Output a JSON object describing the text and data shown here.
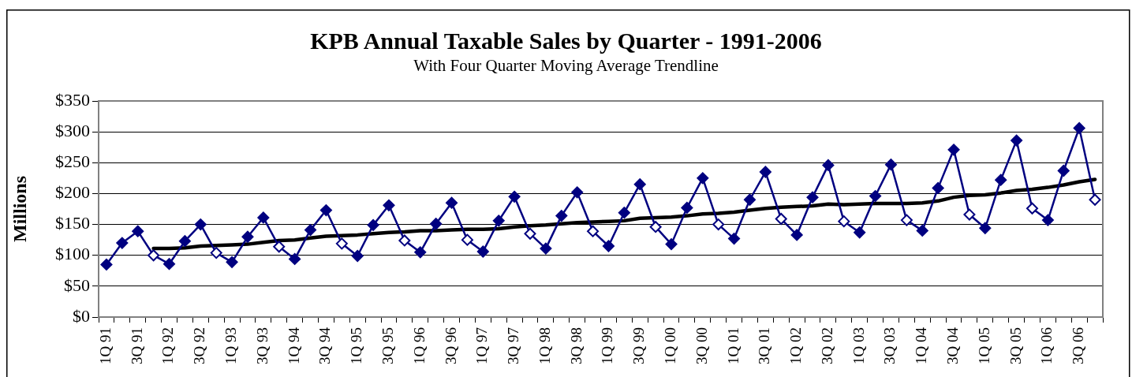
{
  "chart_data": {
    "type": "line",
    "title": "KPB Annual Taxable Sales by Quarter - 1991-2006",
    "subtitle": "With Four Quarter Moving Average Trendline",
    "ylabel": "Millions",
    "categories": [
      "1Q 91",
      null,
      "3Q 91",
      null,
      "1Q 92",
      null,
      "3Q 92",
      null,
      "1Q 93",
      null,
      "3Q 93",
      null,
      "1Q 94",
      null,
      "3Q 94",
      null,
      "1Q 95",
      null,
      "3Q 95",
      null,
      "1Q 96",
      null,
      "3Q 96",
      null,
      "1Q 97",
      null,
      "3Q 97",
      null,
      "1Q 98",
      null,
      "3Q 98",
      null,
      "1Q 99",
      null,
      "3Q 99",
      null,
      "1Q 00",
      null,
      "3Q 00",
      null,
      "1Q 01",
      null,
      "3Q 01",
      null,
      "1Q 02",
      null,
      "3Q 02",
      null,
      "1Q 03",
      null,
      "3Q 03",
      null,
      "1Q 04",
      null,
      "3Q 04",
      null,
      "1Q 05",
      null,
      "3Q 05",
      null,
      "1Q 06",
      null,
      "3Q 06",
      null
    ],
    "series": [
      {
        "color": "#000080",
        "marker": "diamond",
        "colors": [
          "#000080",
          "#000080",
          "#000080",
          "#ffffff",
          "#000080",
          "#000080",
          "#000080",
          "#ffffff",
          "#000080",
          "#000080",
          "#000080",
          "#ffffff",
          "#000080",
          "#000080",
          "#000080",
          "#ffffff",
          "#000080",
          "#000080",
          "#000080",
          "#ffffff",
          "#000080",
          "#000080",
          "#000080",
          "#ffffff",
          "#000080",
          "#000080",
          "#000080",
          "#ffffff",
          "#000080",
          "#000080",
          "#000080",
          "#ffffff",
          "#000080",
          "#000080",
          "#000080",
          "#ffffff",
          "#000080",
          "#000080",
          "#000080",
          "#ffffff",
          "#000080",
          "#000080",
          "#000080",
          "#ffffff",
          "#000080",
          "#000080",
          "#000080",
          "#ffffff",
          "#000080",
          "#000080",
          "#000080",
          "#ffffff",
          "#000080",
          "#000080",
          "#000080",
          "#ffffff",
          "#000080",
          "#000080",
          "#000080",
          "#ffffff",
          "#000080",
          "#000080",
          "#000080",
          "#ffffff"
        ],
        "values": [
          85,
          120,
          139,
          100,
          86,
          123,
          150,
          104,
          89,
          130,
          161,
          114,
          94,
          141,
          173,
          119,
          99,
          149,
          181,
          124,
          105,
          151,
          185,
          125,
          106,
          156,
          195,
          135,
          111,
          164,
          202,
          139,
          115,
          169,
          215,
          146,
          118,
          177,
          225,
          150,
          127,
          190,
          235,
          159,
          133,
          194,
          246,
          155,
          137,
          196,
          247,
          157,
          140,
          209,
          271,
          166,
          144,
          222,
          286,
          176,
          157,
          237,
          306,
          190
        ]
      },
      {
        "type": "line",
        "color": "#000000",
        "marker": "none",
        "values": [
          null,
          null,
          null,
          111,
          111,
          112,
          115,
          116,
          117,
          118,
          121,
          124,
          125,
          128,
          131,
          132,
          133,
          135,
          137,
          138,
          140,
          140,
          141,
          142,
          142,
          143,
          146,
          148,
          149,
          151,
          153,
          154,
          155,
          156,
          160,
          161,
          162,
          164,
          167,
          168,
          170,
          173,
          176,
          178,
          179,
          180,
          183,
          182,
          183,
          184,
          184,
          184,
          185,
          188,
          194,
          197,
          198,
          201,
          205,
          207,
          210,
          214,
          219,
          223
        ]
      }
    ],
    "ylim": [
      0,
      350
    ],
    "yticks": [
      {
        "value": 0,
        "label": "$0"
      },
      {
        "value": 50,
        "label": "$50"
      },
      {
        "value": 100,
        "label": "$100"
      },
      {
        "value": 150,
        "label": "$150"
      },
      {
        "value": 200,
        "label": "$200"
      },
      {
        "value": 250,
        "label": "$250"
      },
      {
        "value": 300,
        "label": "$300"
      },
      {
        "value": 350,
        "label": "$350"
      }
    ],
    "grid": "y",
    "line_style": "solid"
  }
}
